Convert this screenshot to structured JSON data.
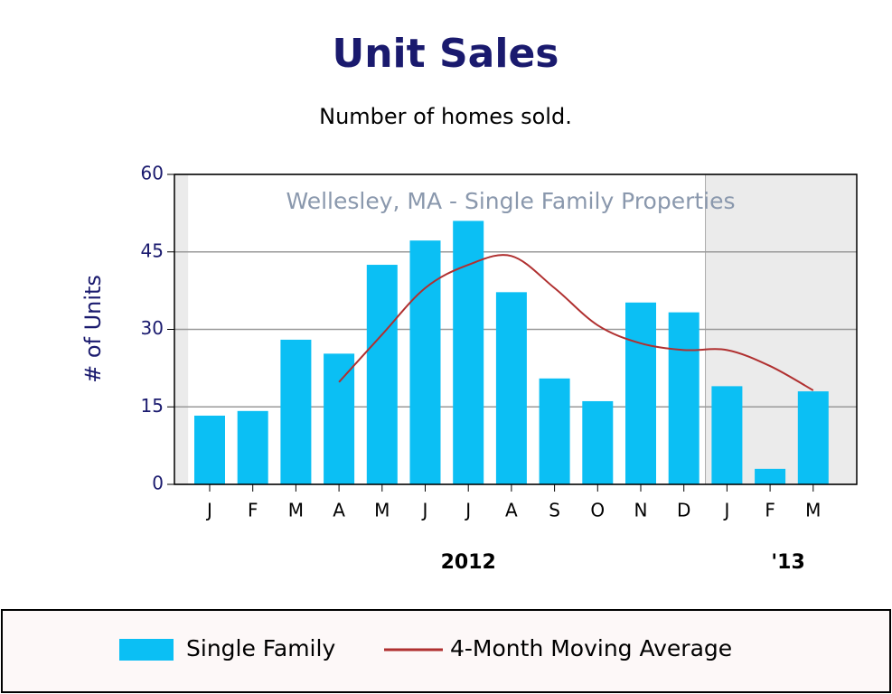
{
  "chart_data": {
    "type": "bar",
    "title": "Unit Sales",
    "subtitle": "Number of homes sold.",
    "annotation": "Wellesley, MA - Single Family Properties",
    "y_label": "# of Units",
    "categories": [
      "J",
      "F",
      "M",
      "A",
      "M",
      "J",
      "J",
      "A",
      "S",
      "O",
      "N",
      "D",
      "J",
      "F",
      "M"
    ],
    "x_groups": [
      "2012",
      "'13"
    ],
    "series": [
      {
        "name": "Single Family",
        "type": "bar",
        "color": "#0bbff4",
        "values": [
          13.3,
          14.2,
          28,
          25.3,
          42.5,
          47.2,
          51,
          37.2,
          20.5,
          16.1,
          35.2,
          33.3,
          19,
          3,
          18
        ]
      },
      {
        "name": "4-Month Moving Average",
        "type": "line",
        "color": "#b03030",
        "values": [
          null,
          null,
          null,
          19.8,
          29,
          38,
          42.5,
          44.2,
          38,
          30.8,
          27.3,
          26,
          26,
          22.9,
          18.2
        ]
      }
    ],
    "ylim": [
      0,
      60
    ],
    "yticks": [
      0,
      15,
      30,
      45,
      60
    ],
    "grid": true,
    "legend": "bottom"
  }
}
